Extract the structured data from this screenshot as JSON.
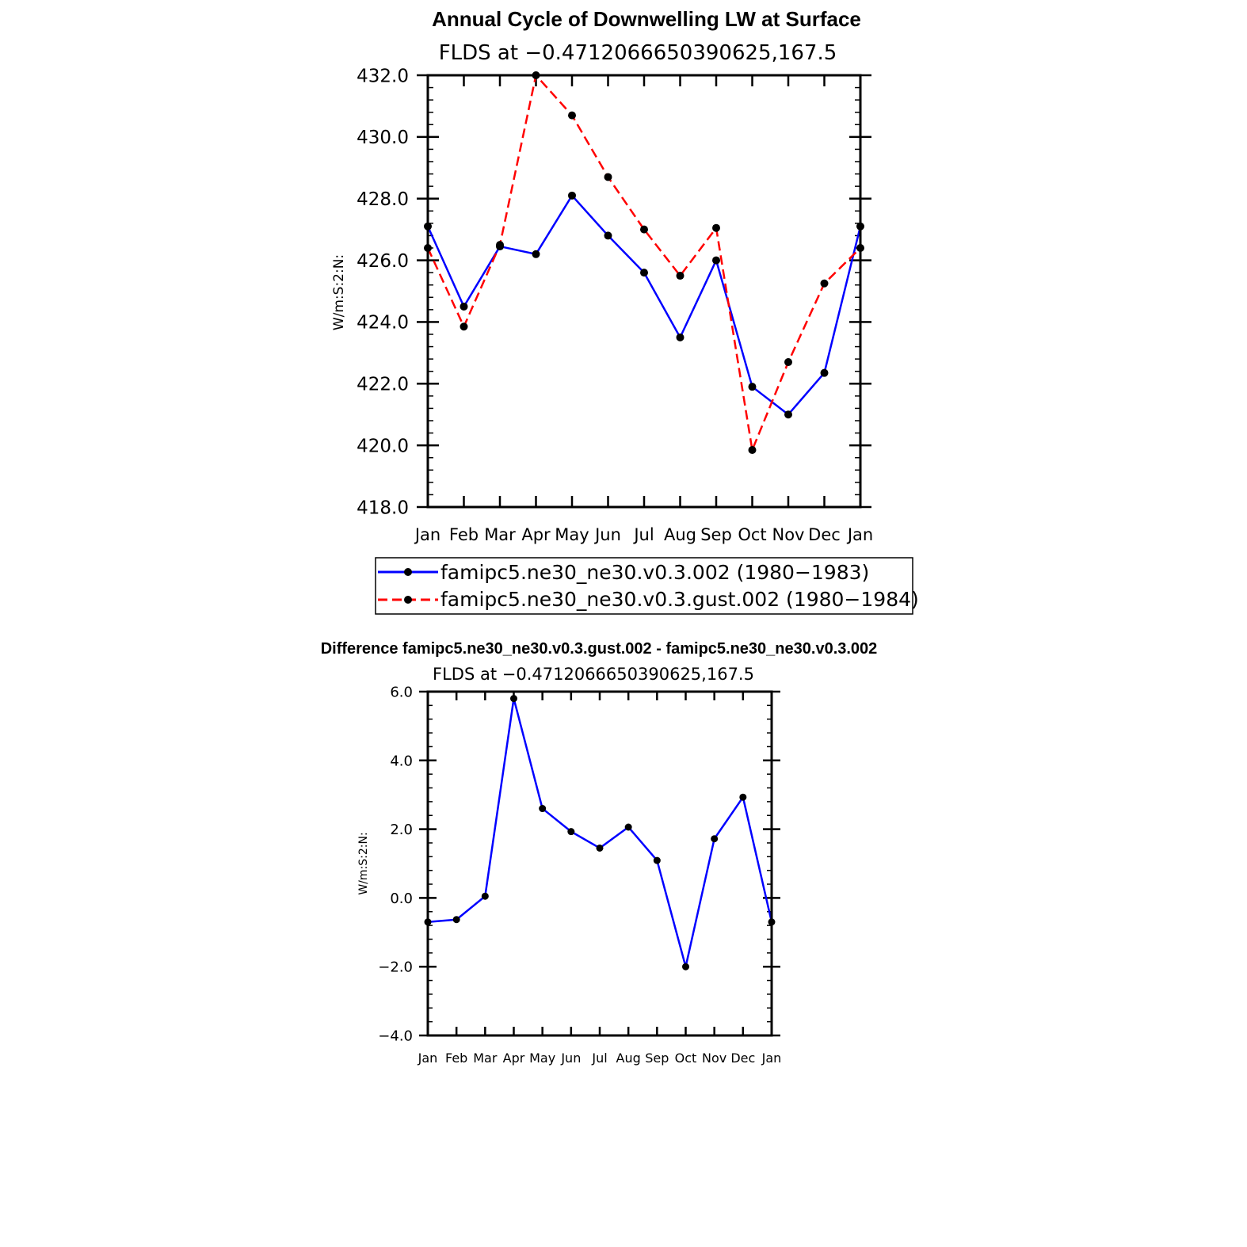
{
  "chart_data": [
    {
      "type": "line",
      "title": "Annual Cycle of Downwelling LW at Surface",
      "subtitle": "FLDS at −0.4712066650390625,167.5",
      "xlabel": "",
      "ylabel": "W/m:S:2:N:",
      "categories": [
        "Jan",
        "Feb",
        "Mar",
        "Apr",
        "May",
        "Jun",
        "Jul",
        "Aug",
        "Sep",
        "Oct",
        "Nov",
        "Dec",
        "Jan"
      ],
      "ylim": [
        418.0,
        432.0
      ],
      "yticks": [
        "418.0",
        "420.0",
        "422.0",
        "424.0",
        "426.0",
        "428.0",
        "430.0",
        "432.0"
      ],
      "series": [
        {
          "name": "famipc5.ne30_ne30.v0.3.002 (1980−1983)",
          "color": "#0000ff",
          "dash": "solid",
          "values": [
            427.1,
            424.5,
            426.45,
            426.2,
            428.1,
            426.8,
            425.6,
            423.5,
            426.0,
            421.9,
            421.0,
            422.35,
            427.1
          ]
        },
        {
          "name": "famipc5.ne30_ne30.v0.3.gust.002 (1980−1984)",
          "color": "#ff0000",
          "dash": "dashed",
          "values": [
            426.4,
            423.85,
            426.5,
            432.0,
            430.7,
            428.7,
            427.0,
            425.5,
            427.05,
            419.85,
            422.7,
            425.25,
            426.4
          ]
        }
      ],
      "legend": "bottom",
      "grid": false
    },
    {
      "type": "line",
      "title": "Difference famipc5.ne30_ne30.v0.3.gust.002 - famipc5.ne30_ne30.v0.3.002",
      "subtitle": "FLDS at −0.4712066650390625,167.5",
      "xlabel": "",
      "ylabel": "W/m:S:2:N:",
      "categories": [
        "Jan",
        "Feb",
        "Mar",
        "Apr",
        "May",
        "Jun",
        "Jul",
        "Aug",
        "Sep",
        "Oct",
        "Nov",
        "Dec",
        "Jan"
      ],
      "ylim": [
        -4.0,
        6.0
      ],
      "yticks": [
        "−4.0",
        "−2.0",
        "0.0",
        "2.0",
        "4.0",
        "6.0"
      ],
      "series": [
        {
          "color": "#0000ff",
          "dash": "solid",
          "values": [
            -0.7,
            -0.63,
            0.05,
            5.8,
            2.6,
            1.93,
            1.45,
            2.06,
            1.09,
            -2.0,
            1.72,
            2.93,
            -0.7
          ]
        }
      ],
      "grid": false
    }
  ]
}
